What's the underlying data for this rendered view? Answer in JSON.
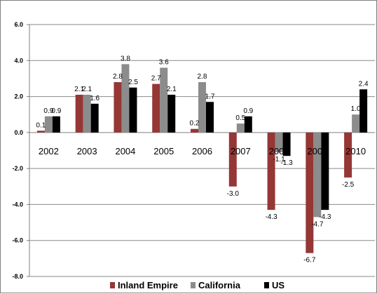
{
  "chart_data": {
    "type": "bar",
    "categories": [
      "2002",
      "2003",
      "2004",
      "2005",
      "2006",
      "2007",
      "2008",
      "2009",
      "2010"
    ],
    "series": [
      {
        "name": "Inland Empire",
        "color": "#953735",
        "values": [
          0.1,
          2.1,
          2.8,
          2.7,
          0.2,
          -3.0,
          -4.3,
          -6.7,
          -2.5
        ],
        "labels": [
          "0.1",
          "2.1",
          "2.8",
          "2.7",
          "0.2",
          "-3.0",
          "-4.3",
          "-6.7",
          "-2.5"
        ]
      },
      {
        "name": "California",
        "color": "#8c8c8c",
        "values": [
          0.9,
          2.1,
          3.8,
          3.6,
          2.8,
          0.5,
          -1.1,
          -4.7,
          1.0
        ],
        "labels": [
          "0.9",
          "2.1",
          "3.8",
          "3.6",
          "2.8",
          "0.5",
          "-1.1",
          "-4.7",
          "1.0"
        ]
      },
      {
        "name": "US",
        "color": "#000000",
        "values": [
          0.9,
          1.6,
          2.5,
          2.1,
          1.7,
          0.9,
          -1.3,
          -4.3,
          2.4
        ],
        "labels": [
          "0.9",
          "1.6",
          "2.5",
          "2.1",
          "1.7",
          "0.9",
          "-1.3",
          "-4.3",
          "2.4"
        ]
      }
    ],
    "ylim": [
      -8.0,
      6.0
    ],
    "yticks": [
      "-8.0",
      "-6.0",
      "-4.0",
      "-2.0",
      "0.0",
      "2.0",
      "4.0",
      "6.0"
    ],
    "ytick_values": [
      -8,
      -6,
      -4,
      -2,
      0,
      2,
      4,
      6
    ],
    "title": "",
    "xlabel": "",
    "ylabel": "",
    "grid": "horizontal",
    "legend_position": "bottom"
  }
}
